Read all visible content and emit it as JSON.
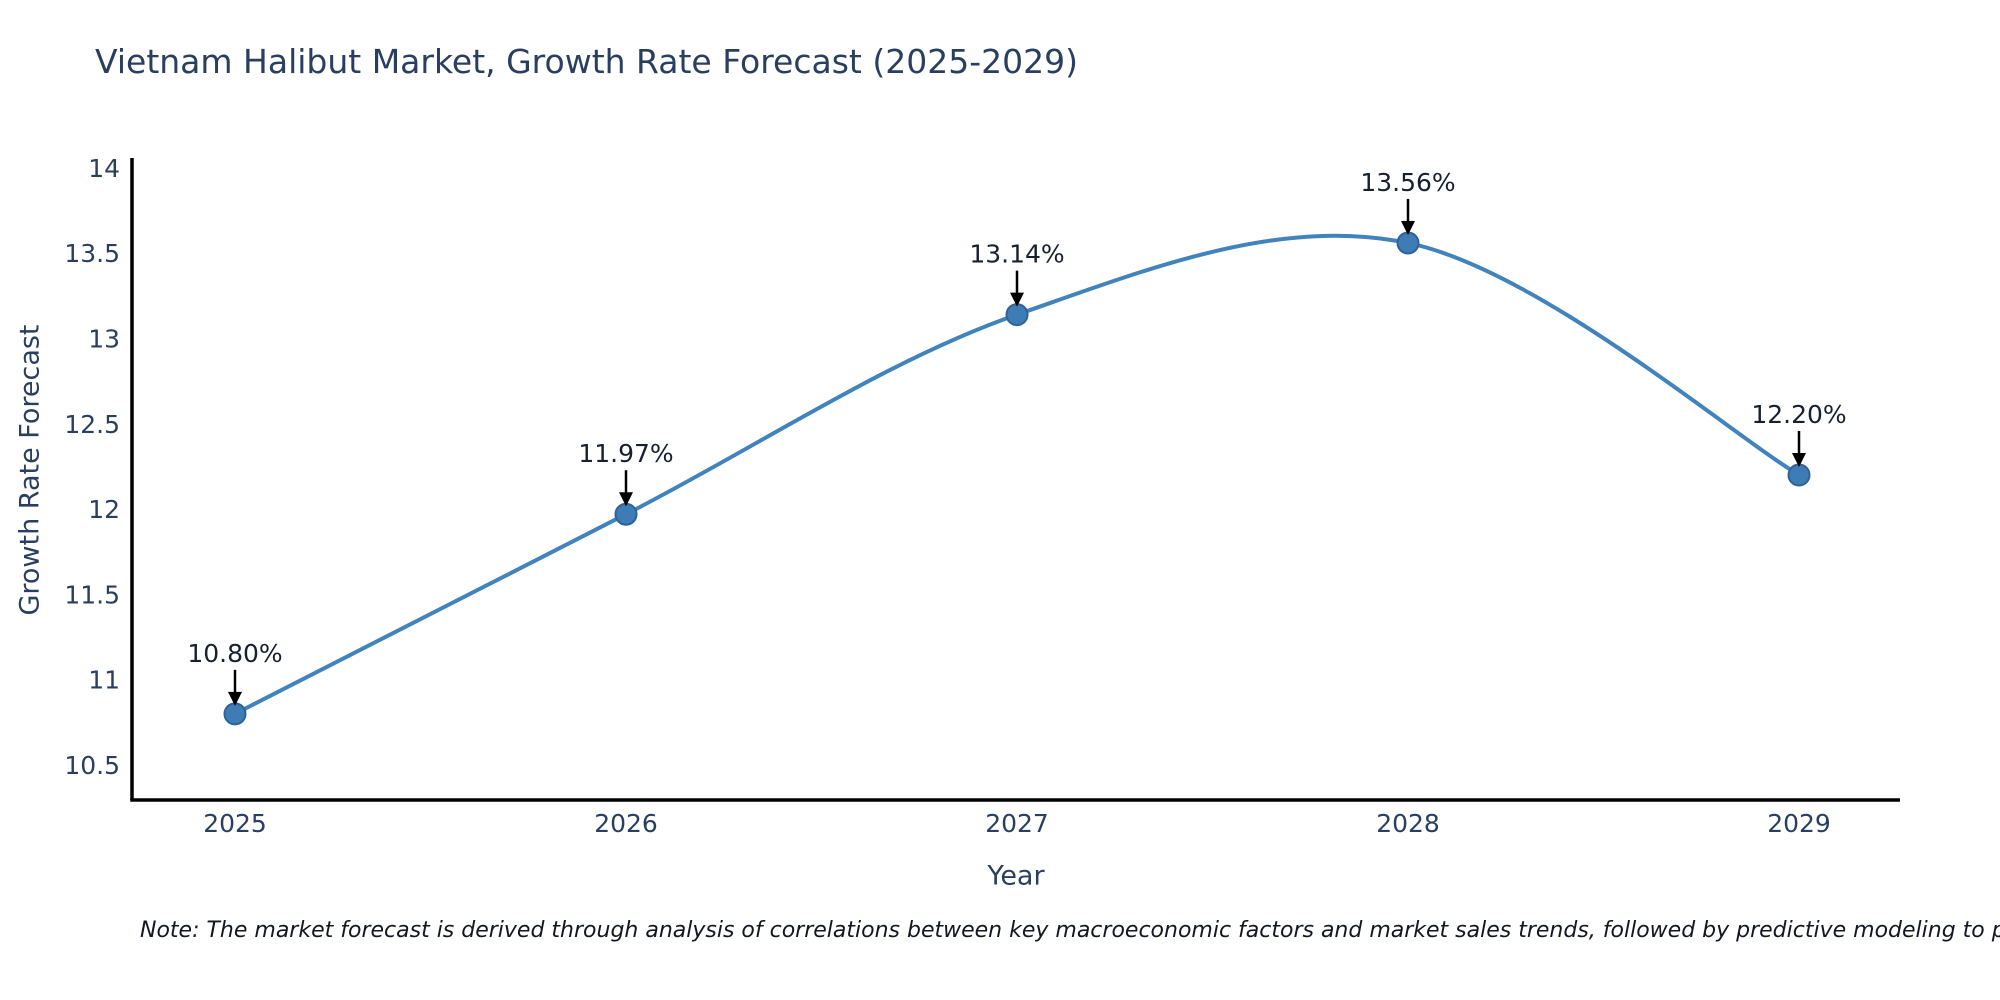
{
  "chart_data": {
    "type": "line",
    "title": "Vietnam Halibut Market, Growth Rate Forecast (2025-2029)",
    "xlabel": "Year",
    "ylabel": "Growth Rate Forecast",
    "categories": [
      "2025",
      "2026",
      "2027",
      "2028",
      "2029"
    ],
    "series": [
      {
        "name": "Growth Rate Forecast",
        "values": [
          10.8,
          11.97,
          13.14,
          13.56,
          12.2
        ],
        "data_labels": [
          "10.80%",
          "11.97%",
          "13.14%",
          "13.56%",
          "12.20%"
        ]
      }
    ],
    "y_ticks": {
      "values": [
        10.5,
        11,
        11.5,
        12,
        12.5,
        13,
        13.5,
        14
      ],
      "labels": [
        "10.5",
        "11",
        "11.5",
        "12",
        "12.5",
        "13",
        "13.5",
        "14"
      ]
    },
    "ylim": [
      10.29,
      14.06
    ],
    "grid": false,
    "legend_position": "none",
    "line_style": "spline",
    "annotations_have_arrows": true,
    "colors": {
      "line": "#4183bd",
      "marker_fill": "#3d7cb4",
      "marker_edge": "#2e6397",
      "axis": "#000000",
      "axis_text": "#2a3f5f",
      "annotation_text": "#16202e",
      "arrow": "#000000"
    },
    "note": "Note: The market forecast is derived through analysis of correlations between key macroeconomic factors and market sales trends, followed by predictive modeling to project future sal"
  }
}
